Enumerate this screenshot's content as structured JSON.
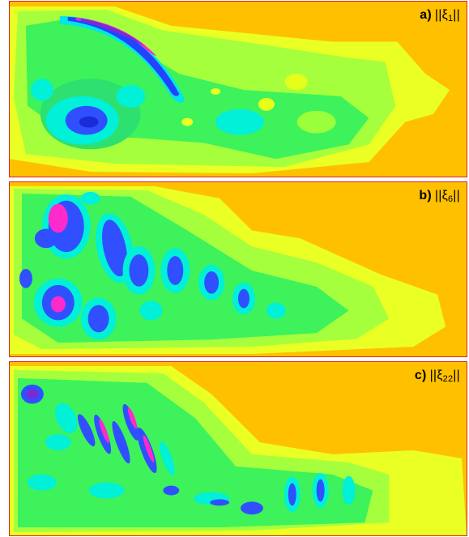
{
  "panels": [
    {
      "id": "a",
      "letter": "a)",
      "prefix": "||ξ",
      "index": "1",
      "suffix": "||"
    },
    {
      "id": "b",
      "letter": "b)",
      "prefix": "||ξ",
      "index": "6",
      "suffix": "||"
    },
    {
      "id": "c",
      "letter": "c)",
      "prefix": "||ξ",
      "index": "22",
      "suffix": "||"
    }
  ],
  "colors": {
    "background": "#ffc000",
    "yellow": "#e6ff1a",
    "light_green": "#9bff3b",
    "green": "#33f05a",
    "cyan": "#00f0e0",
    "blue": "#1f3cff",
    "violet": "#7a22d6",
    "magenta": "#ff22c8",
    "border": "#d8262b"
  }
}
